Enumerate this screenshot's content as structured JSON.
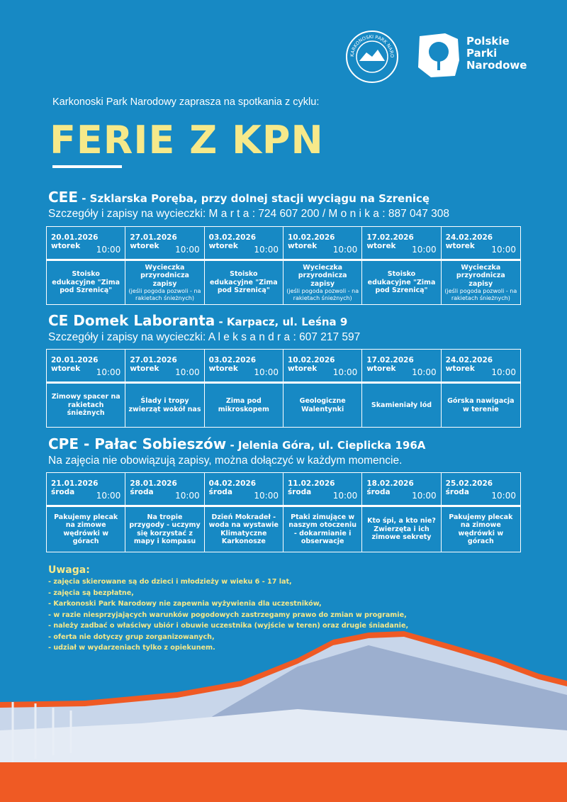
{
  "logos": {
    "kpn": "KARKONOSKI PARK NARODOWY",
    "ppn": [
      "Polskie",
      "Parki",
      "Narodowe"
    ]
  },
  "intro": "Karkonoski Park Narodowy zaprasza na spotkania z cyklu:",
  "title": "FERIE Z KPN",
  "colors": {
    "background": "#1789c4",
    "accent": "#f6e98a",
    "orange": "#ef5a24"
  },
  "sections": [
    {
      "name": "CEE",
      "place": " - Szklarska Poręba,  przy dolnej stacji wyciągu na Szrenicę",
      "subtitle": "Szczegóły i zapisy na wycieczki:  M a r t a :  724  607  200   / M o n i k a :  887  047  308",
      "days": [
        {
          "date": "20.01.2026",
          "day": "wtorek",
          "time": "10:00",
          "event": "Stoisko edukacyjne \"Zima pod Szrenicą\"",
          "note": ""
        },
        {
          "date": "27.01.2026",
          "day": "wtorek",
          "time": "10:00",
          "event": "Wycieczka przyrodnicza zapisy",
          "note": "(jeśli pogoda pozwoli - na rakietach śnieżnych)"
        },
        {
          "date": "03.02.2026",
          "day": "wtorek",
          "time": "10:00",
          "event": "Stoisko edukacyjne \"Zima pod Szrenicą\"",
          "note": ""
        },
        {
          "date": "10.02.2026",
          "day": "wtorek",
          "time": "10:00",
          "event": "Wycieczka przyrodnicza zapisy",
          "note": "(jeśli pogoda pozwoli - na rakietach śnieżnych)"
        },
        {
          "date": "17.02.2026",
          "day": "wtorek",
          "time": "10:00",
          "event": "Stoisko edukacyjne \"Zima pod Szrenicą\"",
          "note": ""
        },
        {
          "date": "24.02.2026",
          "day": "wtorek",
          "time": "10:00",
          "event": "Wycieczka przyrodnicza zapisy",
          "note": "(jeśli pogoda pozwoli - na rakietach śnieżnych)"
        }
      ]
    },
    {
      "name": "CE Domek Laboranta",
      "place": " - Karpacz, ul. Leśna 9",
      "subtitle": "Szczegóły i zapisy na wycieczki: A l e k s a n d r a :  607  217  597",
      "days": [
        {
          "date": "20.01.2026",
          "day": "wtorek",
          "time": "10:00",
          "event": "Zimowy spacer na rakietach śnieżnych",
          "note": ""
        },
        {
          "date": "27.01.2026",
          "day": "wtorek",
          "time": "10:00",
          "event": "Ślady i tropy zwierząt wokół nas",
          "note": ""
        },
        {
          "date": "03.02.2026",
          "day": "wtorek",
          "time": "10:00",
          "event": "Zima pod mikroskopem",
          "note": ""
        },
        {
          "date": "10.02.2026",
          "day": "wtorek",
          "time": "10:00",
          "event": "Geologiczne Walentynki",
          "note": ""
        },
        {
          "date": "17.02.2026",
          "day": "wtorek",
          "time": "10:00",
          "event": "Skamieniały lód",
          "note": ""
        },
        {
          "date": "24.02.2026",
          "day": "wtorek",
          "time": "10:00",
          "event": "Górska nawigacja w terenie",
          "note": ""
        }
      ]
    },
    {
      "name": "CPE - Pałac Sobieszów",
      "place": " - Jelenia Góra, ul. Cieplicka 196A",
      "subtitle": "Na zajęcia nie obowiązują zapisy, można dołączyć w każdym momencie.",
      "days": [
        {
          "date": "21.01.2026",
          "day": "środa",
          "time": "10:00",
          "event": "Pakujemy plecak na zimowe wędrówki w górach",
          "note": ""
        },
        {
          "date": "28.01.2026",
          "day": "środa",
          "time": "10:00",
          "event": "Na tropie przygody - uczymy się korzystać z mapy i kompasu",
          "note": ""
        },
        {
          "date": "04.02.2026",
          "day": "środa",
          "time": "10:00",
          "event": "Dzień Mokradeł - woda na wystawie Klimatyczne Karkonosze",
          "note": ""
        },
        {
          "date": "11.02.2026",
          "day": "środa",
          "time": "10:00",
          "event": "Ptaki zimujące w naszym otoczeniu - dokarmianie i obserwacje",
          "note": ""
        },
        {
          "date": "18.02.2026",
          "day": "środa",
          "time": "10:00",
          "event": "Kto śpi, a kto nie? Zwierzęta i ich zimowe sekrety",
          "note": ""
        },
        {
          "date": "25.02.2026",
          "day": "środa",
          "time": "10:00",
          "event": "Pakujemy plecak na zimowe wędrówki w górach",
          "note": ""
        }
      ]
    }
  ],
  "notes": {
    "heading": "Uwaga:",
    "items": [
      "- zajęcia skierowane są do dzieci i młodzieży w wieku 6 - 17 lat,",
      "- zajęcia są bezpłatne,",
      "- Karkonoski Park Narodowy nie zapewnia wyżywienia dla uczestników,",
      "- w razie niesprzyjających warunków pogodowych zastrzegamy prawo do zmian w programie,",
      "- należy zadbać o właściwy ubiór i obuwie uczestnika (wyjście w teren) oraz drugie śniadanie,",
      "- oferta nie dotyczy grup zorganizowanych,",
      "- udział w wydarzeniach tylko z opiekunem."
    ]
  }
}
